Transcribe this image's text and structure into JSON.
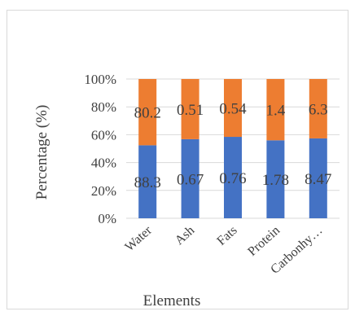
{
  "chart_data": {
    "type": "bar",
    "stacked": "percent",
    "categories": [
      "Water",
      "Ash",
      "Fats",
      "Protein",
      "Carbonhy…"
    ],
    "series": [
      {
        "values": [
          88.3,
          0.67,
          0.76,
          1.78,
          8.47
        ],
        "data_labels": [
          "88.3",
          "0.67",
          "0.76",
          "1.78",
          "8.47"
        ],
        "color": "#4472c4"
      },
      {
        "values": [
          80.2,
          0.51,
          0.54,
          1.4,
          6.3
        ],
        "data_labels": [
          "80.2",
          "0.51",
          "0.54",
          "1.4",
          "6.3"
        ],
        "color": "#ed7d31"
      }
    ],
    "xlabel": "Elements",
    "ylabel": "Percentage (%)",
    "ylim": [
      0,
      100
    ],
    "y_ticks": [
      "0%",
      "20%",
      "40%",
      "60%",
      "80%",
      "100%"
    ],
    "grid": true,
    "legend": "none"
  }
}
